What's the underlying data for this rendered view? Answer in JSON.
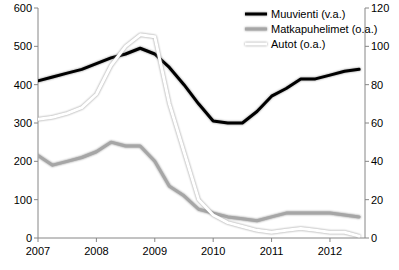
{
  "chart_data": {
    "type": "line",
    "x": [
      2007.0,
      2007.25,
      2007.5,
      2007.75,
      2008.0,
      2008.25,
      2008.5,
      2008.75,
      2009.0,
      2009.25,
      2009.5,
      2009.75,
      2010.0,
      2010.25,
      2010.5,
      2010.75,
      2011.0,
      2011.25,
      2011.5,
      2011.75,
      2012.0,
      2012.25,
      2012.5
    ],
    "xlim": [
      2007,
      2012.6
    ],
    "xticks": [
      2007,
      2008,
      2009,
      2010,
      2011,
      2012
    ],
    "ylim": [
      0,
      600
    ],
    "yticks": [
      0,
      100,
      200,
      300,
      400,
      500,
      600
    ],
    "y2lim": [
      0,
      120
    ],
    "y2ticks": [
      0,
      20,
      40,
      60,
      80,
      100,
      120
    ],
    "legend": "top-right",
    "grid": false,
    "series": [
      {
        "name": "Muuvienti (v.a.)",
        "color": "#000000",
        "values": [
          410,
          420,
          430,
          440,
          455,
          470,
          480,
          495,
          480,
          445,
          400,
          350,
          305,
          300,
          300,
          330,
          370,
          390,
          415,
          415,
          425,
          435,
          440
        ]
      },
      {
        "name": "Matkapuhelimet (o.a.)",
        "color": "#a6a6a6",
        "axis": "y2",
        "values": [
          43,
          38,
          40,
          42,
          45,
          50,
          48,
          48,
          40,
          27,
          22,
          15,
          13,
          11,
          10,
          9,
          11,
          13,
          13,
          13,
          13,
          12,
          11
        ]
      },
      {
        "name": "Autot (o.a.)",
        "color": "#ffffff",
        "axis": "y2",
        "values": [
          62,
          63,
          65,
          68,
          75,
          90,
          100,
          106,
          105,
          70,
          45,
          20,
          12,
          8,
          6,
          4,
          3,
          4,
          5,
          4,
          3,
          3,
          1
        ]
      }
    ]
  }
}
